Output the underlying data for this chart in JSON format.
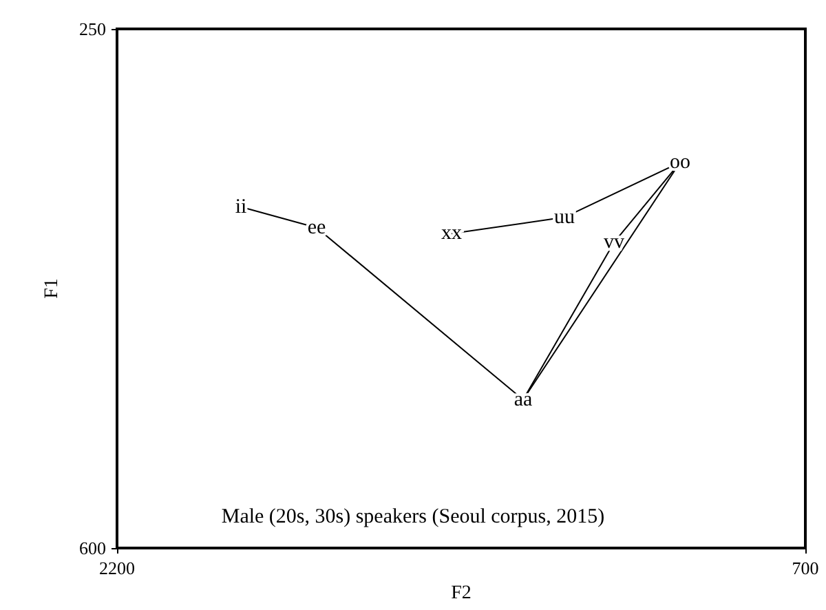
{
  "chart_data": {
    "type": "line",
    "xlabel": "F2",
    "ylabel": "F1",
    "xlim": [
      2200,
      700
    ],
    "xticks": [
      2200,
      700
    ],
    "ylim": [
      600,
      250
    ],
    "yticks": [
      250,
      600
    ],
    "marker": "none",
    "line_style": "solid",
    "series": [
      {
        "color": "#000000",
        "x": [
          1930,
          1765,
          1315,
          973
        ],
        "values": [
          370,
          384,
          500,
          340
        ]
      },
      {
        "color": "#000000",
        "x": [
          1471,
          1225,
          973
        ],
        "values": [
          388,
          377,
          340
        ]
      },
      {
        "color": "#000000",
        "x": [
          1315,
          1117,
          973
        ],
        "values": [
          500,
          394,
          340
        ]
      }
    ],
    "annotations": [
      {
        "text": "ii",
        "x": 1930,
        "y": 370
      },
      {
        "text": "ee",
        "x": 1765,
        "y": 384
      },
      {
        "text": "xx",
        "x": 1471,
        "y": 388
      },
      {
        "text": "uu",
        "x": 1225,
        "y": 377
      },
      {
        "text": "vv",
        "x": 1117,
        "y": 394
      },
      {
        "text": "oo",
        "x": 973,
        "y": 340
      },
      {
        "text": "aa",
        "x": 1315,
        "y": 500
      },
      "Male (20s, 30s) speakers (Seoul corpus, 2015)"
    ]
  }
}
